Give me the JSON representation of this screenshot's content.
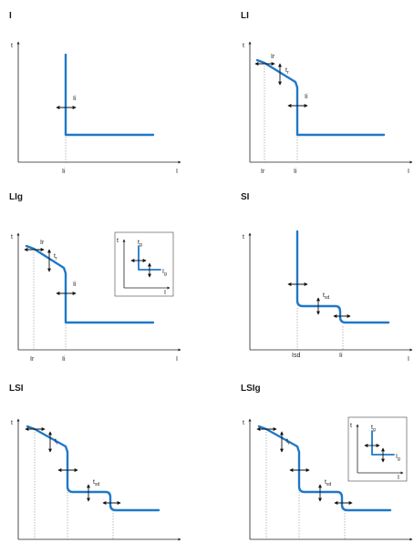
{
  "panels": [
    {
      "id": "I",
      "title": "I",
      "axis_y": "t",
      "axis_x": "I",
      "labels": {
        "ii_arrow": "Ii",
        "ii_tick": "Ii"
      }
    },
    {
      "id": "LI",
      "title": "LI",
      "axis_y": "t",
      "axis_x": "I",
      "labels": {
        "ir_arrow": "Ir",
        "tr_main": "t",
        "tr_sub": "r",
        "ii_arrow": "Ii",
        "ir_tick": "Ir",
        "ii_tick": "Ii"
      }
    },
    {
      "id": "LIg",
      "title": "LIg",
      "axis_y": "t",
      "axis_x": "I",
      "labels": {
        "ir_arrow": "Ir",
        "tr_main": "t",
        "tr_sub": "r",
        "ii_arrow": "Ii",
        "ir_tick": "Ir",
        "ii_tick": "Ii"
      },
      "inset": {
        "axis_y": "t",
        "axis_x": "I",
        "tg_main": "t",
        "tg_sub": "g",
        "ig_main": "I",
        "ig_sub": "g"
      }
    },
    {
      "id": "SI",
      "title": "SI",
      "axis_y": "t",
      "axis_x": "I",
      "labels": {
        "tsd_main": "t",
        "tsd_sub": "sd",
        "isd_tick": "Isd",
        "ii_tick": "Ii"
      }
    },
    {
      "id": "LSI",
      "title": "LSI",
      "axis_y": "t",
      "axis_x": "I",
      "labels": {
        "tr_main": "t",
        "tr_sub": "r",
        "tsd_main": "t",
        "tsd_sub": "sd"
      }
    },
    {
      "id": "LSIg",
      "title": "LSIg",
      "axis_y": "t",
      "axis_x": "I",
      "labels": {
        "tr_main": "t",
        "tr_sub": "r",
        "tsd_main": "t",
        "tsd_sub": "sd"
      },
      "inset": {
        "axis_y": "t",
        "axis_x": "I",
        "tg_main": "t",
        "tg_sub": "g",
        "ig_main": "I",
        "ig_sub": "g"
      }
    }
  ],
  "colors": {
    "curve": "#1f78c8",
    "axis": "#222222",
    "arrow": "#111111"
  }
}
